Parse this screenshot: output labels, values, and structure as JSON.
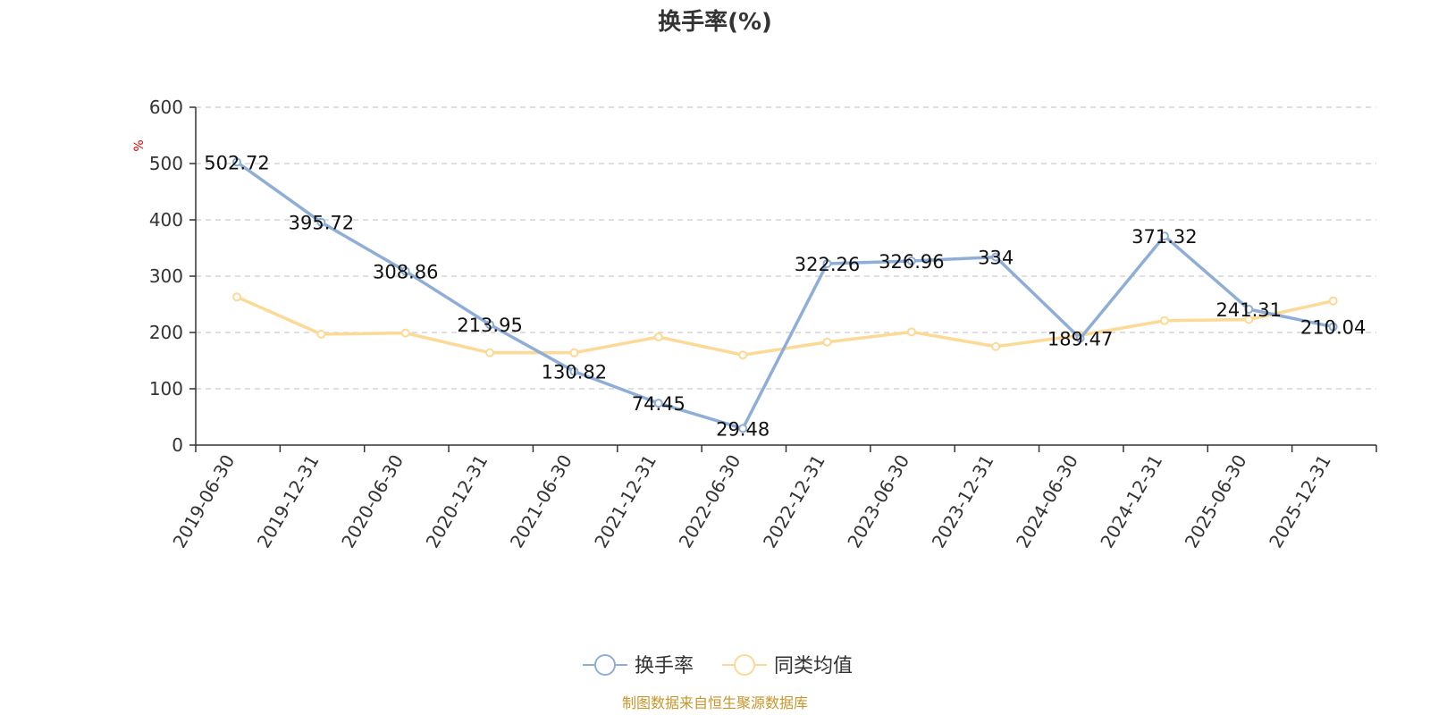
{
  "chart_data": {
    "type": "line",
    "title": "换手率(%)",
    "ylabel": "%",
    "ylim": [
      0,
      600
    ],
    "yticks": [
      0,
      100,
      200,
      300,
      400,
      500,
      600
    ],
    "grid": true,
    "legend_position": "bottom-center",
    "categories": [
      "2019-06-30",
      "2019-12-31",
      "2020-06-30",
      "2020-12-31",
      "2021-06-30",
      "2021-12-31",
      "2022-06-30",
      "2022-12-31",
      "2023-06-30",
      "2023-12-31",
      "2024-06-30",
      "2024-12-31",
      "2025-06-30",
      "2025-12-31"
    ],
    "series": [
      {
        "name": "换手率",
        "color": "#8eaed8",
        "values": [
          502.72,
          395.72,
          308.86,
          213.95,
          130.82,
          74.45,
          29.48,
          322.26,
          326.96,
          334,
          189.47,
          371.32,
          241.31,
          210.04
        ],
        "labels": [
          "502.72",
          "395.72",
          "308.86",
          "213.95",
          "130.82",
          "74.45",
          "29.48",
          "322.26",
          "326.96",
          "334",
          "189.47",
          "371.32",
          "241.31",
          "210.04"
        ]
      },
      {
        "name": "同类均值",
        "color": "#fcd995",
        "values": [
          263,
          197,
          199,
          164,
          164,
          192,
          160,
          183,
          201,
          175,
          195,
          221,
          223,
          256
        ]
      }
    ],
    "source": "制图数据来自恒生聚源数据库"
  }
}
